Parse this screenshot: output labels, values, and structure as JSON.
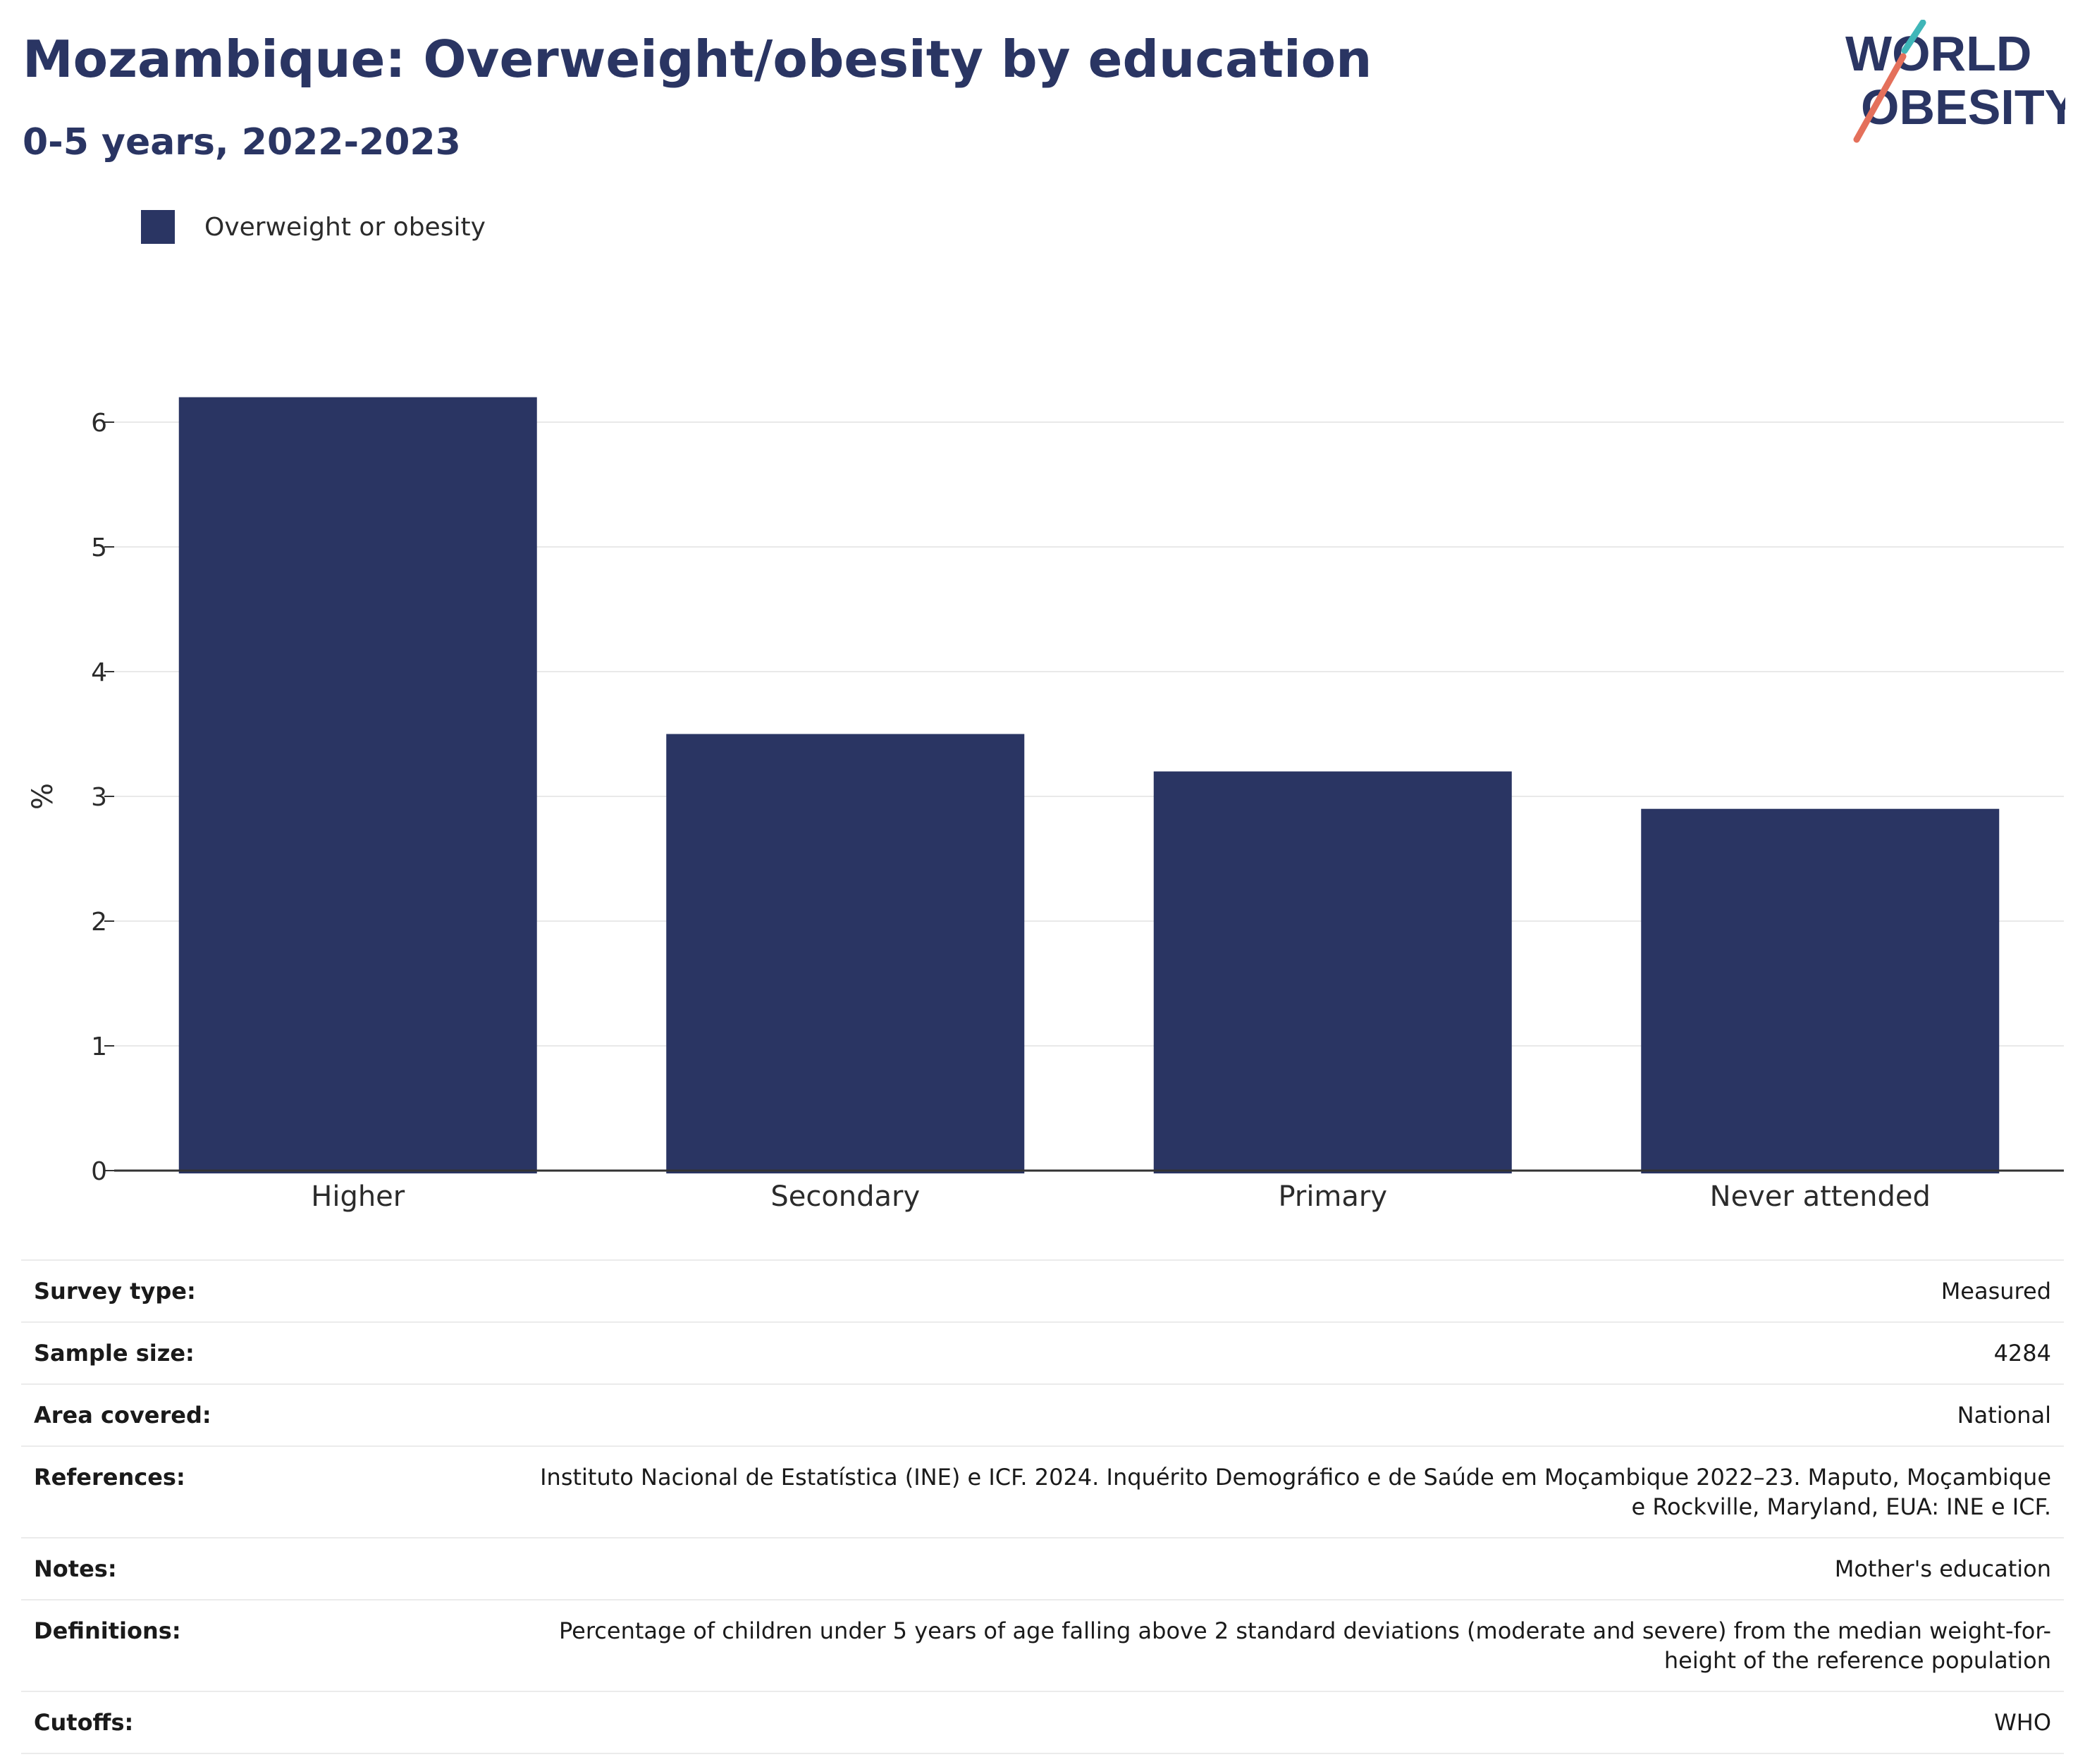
{
  "header": {
    "title": "Mozambique: Overweight/obesity by education",
    "subtitle": "0-5 years, 2022-2023"
  },
  "logo": {
    "line1": "WORLD",
    "line2": "OBESITY"
  },
  "colors": {
    "bar": "#2a3563",
    "grid": "#e9e9e9",
    "axis": "#333333",
    "logo_teal": "#3fb6b8",
    "logo_coral": "#e4705b"
  },
  "chart_data": {
    "type": "bar",
    "categories": [
      "Higher",
      "Secondary",
      "Primary",
      "Never attended"
    ],
    "series": [
      {
        "name": "Overweight or obesity",
        "values": [
          6.2,
          3.5,
          3.2,
          2.9
        ]
      }
    ],
    "ylabel": "%",
    "xlabel": "",
    "ylim": [
      0,
      6.6
    ],
    "yticks": [
      0,
      1,
      2,
      3,
      4,
      5,
      6
    ],
    "grid": true,
    "legend": "top-left"
  },
  "meta": {
    "rows": [
      {
        "key": "Survey type:",
        "value": "Measured"
      },
      {
        "key": "Sample size:",
        "value": "4284"
      },
      {
        "key": "Area covered:",
        "value": "National"
      },
      {
        "key": "References:",
        "value": "Instituto Nacional de Estatística (INE) e ICF. 2024. Inquérito Demográfico e de Saúde em Moçambique 2022–23. Maputo, Moçambique e Rockville, Maryland, EUA: INE e ICF."
      },
      {
        "key": "Notes:",
        "value": "Mother's education"
      },
      {
        "key": "Definitions:",
        "value": "Percentage of children under 5 years of age falling above 2 standard deviations (moderate and severe) from the median weight-for-height of the reference population"
      },
      {
        "key": "Cutoffs:",
        "value": "WHO"
      }
    ]
  }
}
